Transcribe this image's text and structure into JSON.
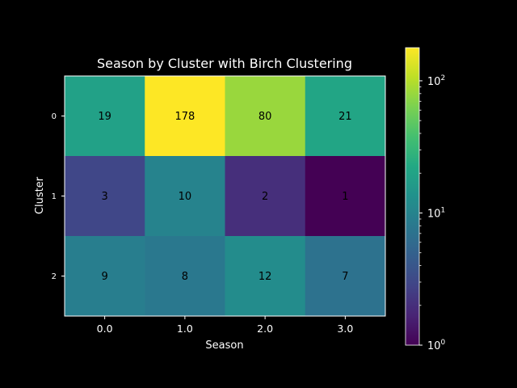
{
  "chart_data": {
    "type": "heatmap",
    "title": "Season by Cluster with Birch Clustering",
    "xlabel": "Season",
    "ylabel": "Cluster",
    "x_categories": [
      "0.0",
      "1.0",
      "2.0",
      "3.0"
    ],
    "y_categories": [
      "0",
      "1",
      "2"
    ],
    "values": [
      [
        19,
        178,
        80,
        21
      ],
      [
        3,
        10,
        2,
        1
      ],
      [
        9,
        8,
        12,
        7
      ]
    ],
    "colormap": "viridis",
    "color_scale": "log",
    "color_range": [
      1,
      178
    ],
    "colorbar": {
      "ticks": [
        {
          "value": 1,
          "base": "10",
          "exp": "0"
        },
        {
          "value": 10,
          "base": "10",
          "exp": "1"
        },
        {
          "value": 100,
          "base": "10",
          "exp": "2"
        }
      ]
    }
  }
}
